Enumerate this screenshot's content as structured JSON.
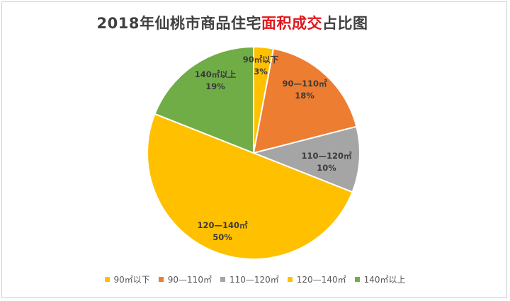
{
  "title": {
    "before": "2018年仙桃市商品住宅",
    "highlight": "面积成交",
    "after": "占比图",
    "highlight_color": "#e0171c"
  },
  "chart_data": {
    "type": "pie",
    "title": "2018年仙桃市商品住宅面积成交占比图",
    "start_angle_deg": 0,
    "direction": "clockwise",
    "legend_position": "bottom",
    "slices": [
      {
        "label": "90㎡以下",
        "value": 3,
        "value_label": "3%",
        "color": "#ffc000",
        "name": "slice-under-90"
      },
      {
        "label": "90—110㎡",
        "value": 18,
        "value_label": "18%",
        "color": "#ed7d31",
        "name": "slice-90-110"
      },
      {
        "label": "110—120㎡",
        "value": 10,
        "value_label": "10%",
        "color": "#a5a5a5",
        "name": "slice-110-120"
      },
      {
        "label": "120—140㎡",
        "value": 50,
        "value_label": "50%",
        "color": "#ffc000",
        "name": "slice-120-140"
      },
      {
        "label": "140㎡以上",
        "value": 19,
        "value_label": "19%",
        "color": "#70ad47",
        "name": "slice-over-140"
      }
    ]
  }
}
